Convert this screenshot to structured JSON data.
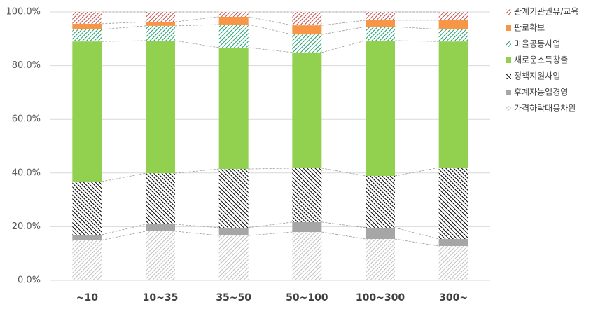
{
  "chart_data": {
    "type": "stacked_bar_100",
    "categories": [
      "~10",
      "10~35",
      "35~50",
      "50~100",
      "100~300",
      "300~"
    ],
    "series": [
      {
        "name": "가격하락대응차원",
        "color": "#bfbfbf",
        "hatch": true,
        "values": [
          15,
          18.3,
          16.7,
          18,
          15.4,
          12.8
        ]
      },
      {
        "name": "후계자농업경영",
        "color": "#a6a6a6",
        "hatch": false,
        "values": [
          2,
          2.6,
          2.9,
          3.7,
          4.2,
          2.6
        ]
      },
      {
        "name": "정책지원사업",
        "color": "#000000",
        "hatch": true,
        "values": [
          19.8,
          19,
          21.9,
          20.1,
          19.3,
          26.6
        ]
      },
      {
        "name": "새로운소득창출",
        "color": "#92d050",
        "hatch": false,
        "values": [
          52.2,
          49.4,
          45.2,
          43.1,
          50.4,
          47
        ]
      },
      {
        "name": "마을공동사업",
        "color": "#1e9e6e",
        "hatch": true,
        "values": [
          4.5,
          5.5,
          8.6,
          6.7,
          5.2,
          4.5
        ]
      },
      {
        "name": "판로확보",
        "color": "#f79646",
        "hatch": false,
        "values": [
          2.1,
          1.5,
          2.9,
          3.4,
          2.4,
          3.4
        ]
      },
      {
        "name": "관계기관권유/교육",
        "color": "#c0504d",
        "hatch": true,
        "values": [
          4.4,
          3.7,
          1.8,
          5,
          3.1,
          3.1
        ]
      }
    ],
    "ylim": [
      0,
      100
    ],
    "yticks": [
      {
        "value": 0,
        "label": "0.0%"
      },
      {
        "value": 20,
        "label": "20.0%"
      },
      {
        "value": 40,
        "label": "40.0%"
      },
      {
        "value": 60,
        "label": "60.0%"
      },
      {
        "value": 80,
        "label": "80.0%"
      },
      {
        "value": 100,
        "label": "100.0%"
      }
    ],
    "grid": true,
    "legend": "right"
  }
}
